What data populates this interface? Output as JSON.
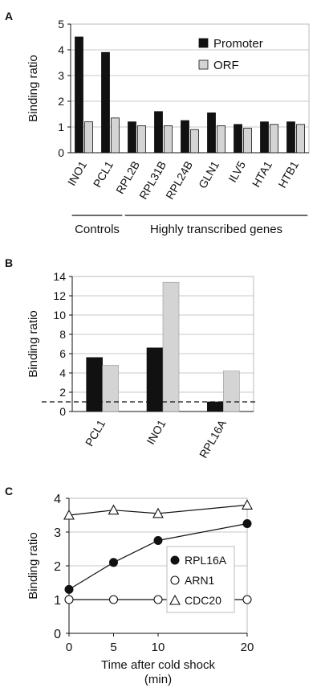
{
  "chart_data": [
    {
      "panel_label": "A",
      "type": "bar",
      "ylabel": "Binding ratio",
      "ylim": [
        0,
        5
      ],
      "yticks": [
        0,
        1,
        2,
        3,
        4,
        5
      ],
      "grid": true,
      "legend_position": "top-right",
      "categories": [
        "INO1",
        "PCL1",
        "RPL2B",
        "RPL31B",
        "RPL24B",
        "GLN1",
        "ILV5",
        "HTA1",
        "HTB1"
      ],
      "series": [
        {
          "name": "Promoter",
          "color": "#111111",
          "values": [
            4.5,
            3.9,
            1.2,
            1.6,
            1.25,
            1.55,
            1.1,
            1.2,
            1.2
          ]
        },
        {
          "name": "ORF",
          "color": "#d4d4d4",
          "values": [
            1.2,
            1.35,
            1.05,
            1.05,
            0.9,
            1.05,
            0.95,
            1.1,
            1.1
          ]
        }
      ],
      "groups": [
        {
          "label": "Controls",
          "categories": [
            "INO1",
            "PCL1"
          ]
        },
        {
          "label": "Highly transcribed genes",
          "categories": [
            "RPL2B",
            "RPL31B",
            "RPL24B",
            "GLN1",
            "ILV5",
            "HTA1",
            "HTB1"
          ]
        }
      ]
    },
    {
      "panel_label": "B",
      "type": "bar",
      "ylabel": "Binding ratio",
      "ylim": [
        0,
        14
      ],
      "yticks": [
        0,
        2,
        4,
        6,
        8,
        10,
        12,
        14
      ],
      "grid": true,
      "categories": [
        "PCL1",
        "INO1",
        "RPL16A"
      ],
      "reference_line": 1,
      "series": [
        {
          "color": "#111111",
          "values": [
            5.6,
            6.6,
            1.0
          ]
        },
        {
          "color": "#d4d4d4",
          "values": [
            4.8,
            13.4,
            4.2
          ]
        }
      ]
    },
    {
      "panel_label": "C",
      "type": "line",
      "ylabel": "Binding ratio",
      "xlabel": "Time after cold shock",
      "xlabel_unit": "(min)",
      "x": [
        0,
        5,
        10,
        20
      ],
      "xlim": [
        0,
        20
      ],
      "ylim": [
        0,
        4
      ],
      "yticks": [
        0,
        1,
        2,
        3,
        4
      ],
      "grid": true,
      "legend_position": "right",
      "series": [
        {
          "name": "RPL16A",
          "marker": "filled-circle",
          "values": [
            1.3,
            2.1,
            2.75,
            3.25
          ]
        },
        {
          "name": "ARN1",
          "marker": "open-circle",
          "values": [
            1.0,
            1.0,
            1.0,
            1.0
          ]
        },
        {
          "name": "CDC20",
          "marker": "open-triangle",
          "values": [
            3.5,
            3.65,
            3.55,
            3.8
          ]
        }
      ]
    }
  ]
}
